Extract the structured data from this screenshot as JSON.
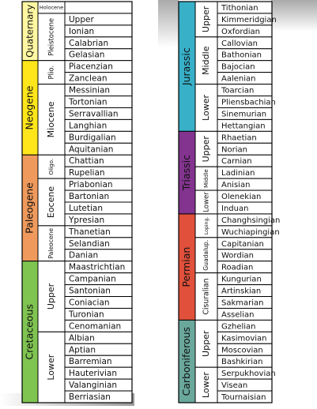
{
  "tables": [
    {
      "periods": [
        {
          "name": "Quaternary",
          "color": "#fff7a1",
          "epochs": [
            {
              "name": "Holocene",
              "ages": []
            },
            {
              "name": "Pleistocene",
              "ages": [
                "Upper",
                "Ionian",
                "Calabrian",
                "Gelasian"
              ]
            }
          ]
        },
        {
          "name": "Neogene",
          "color": "#ffe61a",
          "epochs": [
            {
              "name": "Plio.",
              "ages": [
                "Piacenzian",
                "Zanclean"
              ]
            },
            {
              "name": "Miocene",
              "ages": [
                "Messinian",
                "Tortonian",
                "Serravallian",
                "Langhian",
                "Burdigalian",
                "Aquitanian"
              ]
            }
          ]
        },
        {
          "name": "Paleogene",
          "color": "#ef9a5c",
          "epochs": [
            {
              "name": "Oligo.",
              "ages": [
                "Chattian",
                "Rupelian"
              ]
            },
            {
              "name": "Eocene",
              "ages": [
                "Priabonian",
                "Bartonian",
                "Lutetian",
                "Ypresian"
              ]
            },
            {
              "name": "Paleocene",
              "ages": [
                "Thanetian",
                "Selandian",
                "Danian"
              ]
            }
          ]
        },
        {
          "name": "Cretaceous",
          "color": "#7fc451",
          "epochs": [
            {
              "name": "Upper",
              "ages": [
                "Maastrichtian",
                "Campanian",
                "Santonian",
                "Coniacian",
                "Turonian",
                "Cenomanian"
              ]
            },
            {
              "name": "Lower",
              "ages": [
                "Albian",
                "Aptian",
                "Barremian",
                "Hauterivian",
                "Valanginian",
                "Berriasian"
              ]
            }
          ]
        }
      ]
    },
    {
      "periods": [
        {
          "name": "Jurassic",
          "color": "#37b0c8",
          "epochs": [
            {
              "name": "Upper",
              "ages": [
                "Tithonian",
                "Kimmeridgian",
                "Oxfordian"
              ]
            },
            {
              "name": "Middle",
              "ages": [
                "Callovian",
                "Bathonian",
                "Bajocian",
                "Aalenian"
              ]
            },
            {
              "name": "Lower",
              "ages": [
                "Toarcian",
                "Pliensbachian",
                "Sinemurian",
                "Hettangian"
              ]
            }
          ]
        },
        {
          "name": "Triassic",
          "color": "#83348f",
          "epochs": [
            {
              "name": "Upper",
              "ages": [
                "Rhaetian",
                "Norian",
                "Carnian"
              ]
            },
            {
              "name": "Middle",
              "ages": [
                "Ladinian",
                "Anisian"
              ]
            },
            {
              "name": "Lower",
              "ages": [
                "Olenekian",
                "Induan"
              ]
            }
          ]
        },
        {
          "name": "Permian",
          "color": "#e0503a",
          "epochs": [
            {
              "name": "Loping.",
              "ages": [
                "Changhsingian",
                "Wuchiapingian"
              ]
            },
            {
              "name": "Guadalup.",
              "ages": [
                "Capitanian",
                "Wordian",
                "Roadian"
              ]
            },
            {
              "name": "Cisuralian",
              "ages": [
                "Kungurian",
                "Artinskian",
                "Sakmarian",
                "Asselian"
              ]
            }
          ]
        },
        {
          "name": "Carboniferous",
          "color": "#6aa89c",
          "epochs": [
            {
              "name": "Upper",
              "ages": [
                "Gzhelian",
                "Kasimovian",
                "Moscovian",
                "Bashkirian"
              ]
            },
            {
              "name": "Lower",
              "ages": [
                "Serpukhovian",
                "Visean",
                "Tournaisian"
              ]
            }
          ]
        }
      ]
    }
  ]
}
